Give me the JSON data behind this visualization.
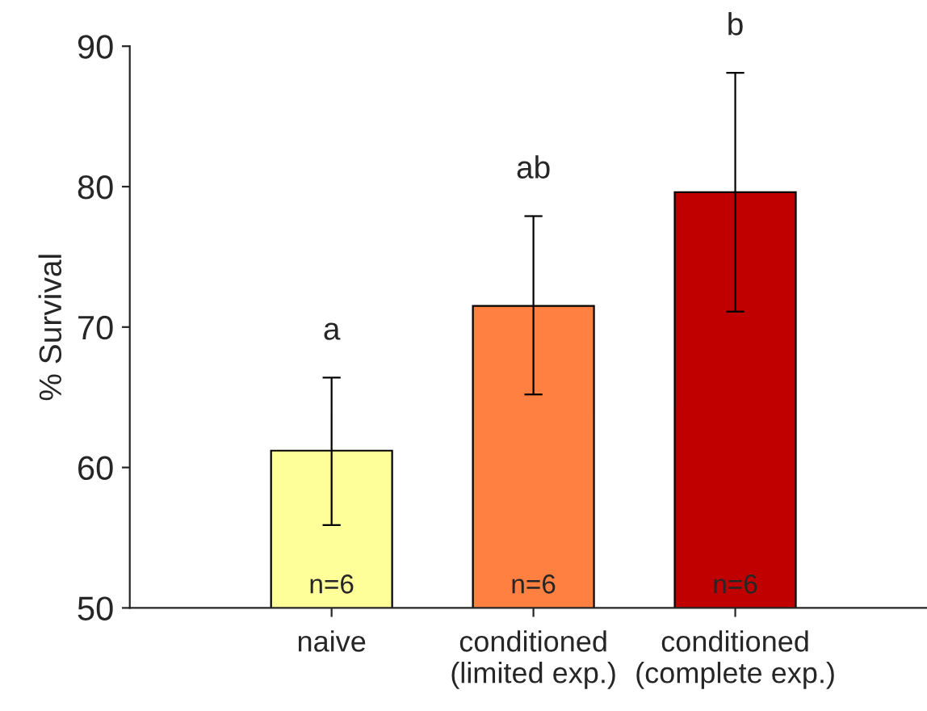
{
  "chart_data": {
    "type": "bar",
    "ylabel": "% Survival",
    "categories": [
      "naive",
      "conditioned\n(limited exp.)",
      "conditioned\n(complete exp.)"
    ],
    "values": [
      61.2,
      71.5,
      79.6
    ],
    "colors": [
      "#ffff99",
      "#ff8040",
      "#c00000"
    ],
    "errors": [
      [
        55.9,
        66.4
      ],
      [
        65.2,
        77.9
      ],
      [
        71.1,
        88.1
      ]
    ],
    "ylim": [
      50,
      90
    ],
    "yticks": [
      50,
      60,
      70,
      80,
      90
    ],
    "grid": false,
    "annotations": [
      "a",
      "ab",
      "b",
      "n=6",
      "n=6",
      "n=6"
    ]
  }
}
